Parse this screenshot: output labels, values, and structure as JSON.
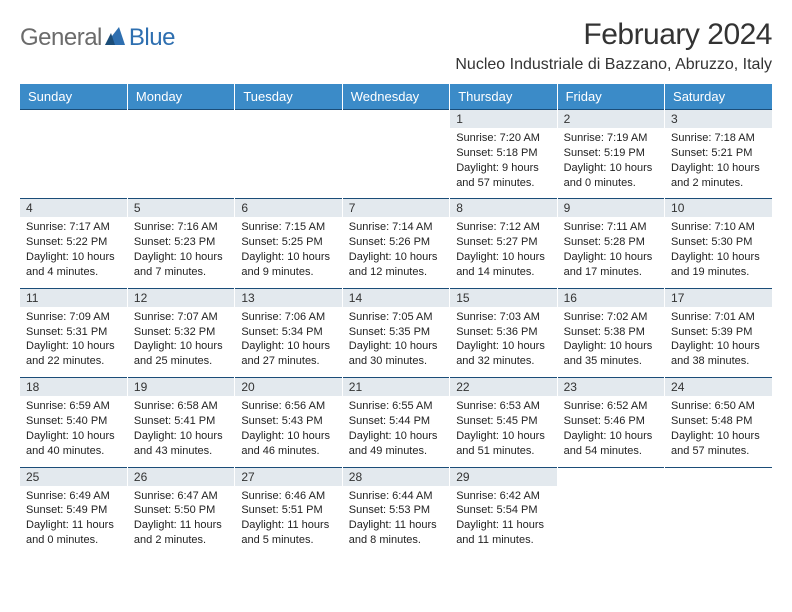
{
  "logo": {
    "text1": "General",
    "text2": "Blue"
  },
  "title": "February 2024",
  "location": "Nucleo Industriale di Bazzano, Abruzzo, Italy",
  "colors": {
    "header_bg": "#3b8bc8",
    "header_text": "#ffffff",
    "daynum_bg": "#e3e9ee",
    "rule": "#1b4d78",
    "logo_gray": "#6b6b6b",
    "logo_blue": "#2e6fb0"
  },
  "weekdays": [
    "Sunday",
    "Monday",
    "Tuesday",
    "Wednesday",
    "Thursday",
    "Friday",
    "Saturday"
  ],
  "weeks": [
    [
      null,
      null,
      null,
      null,
      {
        "n": "1",
        "sr": "7:20 AM",
        "ss": "5:18 PM",
        "dl": "9 hours and 57 minutes."
      },
      {
        "n": "2",
        "sr": "7:19 AM",
        "ss": "5:19 PM",
        "dl": "10 hours and 0 minutes."
      },
      {
        "n": "3",
        "sr": "7:18 AM",
        "ss": "5:21 PM",
        "dl": "10 hours and 2 minutes."
      }
    ],
    [
      {
        "n": "4",
        "sr": "7:17 AM",
        "ss": "5:22 PM",
        "dl": "10 hours and 4 minutes."
      },
      {
        "n": "5",
        "sr": "7:16 AM",
        "ss": "5:23 PM",
        "dl": "10 hours and 7 minutes."
      },
      {
        "n": "6",
        "sr": "7:15 AM",
        "ss": "5:25 PM",
        "dl": "10 hours and 9 minutes."
      },
      {
        "n": "7",
        "sr": "7:14 AM",
        "ss": "5:26 PM",
        "dl": "10 hours and 12 minutes."
      },
      {
        "n": "8",
        "sr": "7:12 AM",
        "ss": "5:27 PM",
        "dl": "10 hours and 14 minutes."
      },
      {
        "n": "9",
        "sr": "7:11 AM",
        "ss": "5:28 PM",
        "dl": "10 hours and 17 minutes."
      },
      {
        "n": "10",
        "sr": "7:10 AM",
        "ss": "5:30 PM",
        "dl": "10 hours and 19 minutes."
      }
    ],
    [
      {
        "n": "11",
        "sr": "7:09 AM",
        "ss": "5:31 PM",
        "dl": "10 hours and 22 minutes."
      },
      {
        "n": "12",
        "sr": "7:07 AM",
        "ss": "5:32 PM",
        "dl": "10 hours and 25 minutes."
      },
      {
        "n": "13",
        "sr": "7:06 AM",
        "ss": "5:34 PM",
        "dl": "10 hours and 27 minutes."
      },
      {
        "n": "14",
        "sr": "7:05 AM",
        "ss": "5:35 PM",
        "dl": "10 hours and 30 minutes."
      },
      {
        "n": "15",
        "sr": "7:03 AM",
        "ss": "5:36 PM",
        "dl": "10 hours and 32 minutes."
      },
      {
        "n": "16",
        "sr": "7:02 AM",
        "ss": "5:38 PM",
        "dl": "10 hours and 35 minutes."
      },
      {
        "n": "17",
        "sr": "7:01 AM",
        "ss": "5:39 PM",
        "dl": "10 hours and 38 minutes."
      }
    ],
    [
      {
        "n": "18",
        "sr": "6:59 AM",
        "ss": "5:40 PM",
        "dl": "10 hours and 40 minutes."
      },
      {
        "n": "19",
        "sr": "6:58 AM",
        "ss": "5:41 PM",
        "dl": "10 hours and 43 minutes."
      },
      {
        "n": "20",
        "sr": "6:56 AM",
        "ss": "5:43 PM",
        "dl": "10 hours and 46 minutes."
      },
      {
        "n": "21",
        "sr": "6:55 AM",
        "ss": "5:44 PM",
        "dl": "10 hours and 49 minutes."
      },
      {
        "n": "22",
        "sr": "6:53 AM",
        "ss": "5:45 PM",
        "dl": "10 hours and 51 minutes."
      },
      {
        "n": "23",
        "sr": "6:52 AM",
        "ss": "5:46 PM",
        "dl": "10 hours and 54 minutes."
      },
      {
        "n": "24",
        "sr": "6:50 AM",
        "ss": "5:48 PM",
        "dl": "10 hours and 57 minutes."
      }
    ],
    [
      {
        "n": "25",
        "sr": "6:49 AM",
        "ss": "5:49 PM",
        "dl": "11 hours and 0 minutes."
      },
      {
        "n": "26",
        "sr": "6:47 AM",
        "ss": "5:50 PM",
        "dl": "11 hours and 2 minutes."
      },
      {
        "n": "27",
        "sr": "6:46 AM",
        "ss": "5:51 PM",
        "dl": "11 hours and 5 minutes."
      },
      {
        "n": "28",
        "sr": "6:44 AM",
        "ss": "5:53 PM",
        "dl": "11 hours and 8 minutes."
      },
      {
        "n": "29",
        "sr": "6:42 AM",
        "ss": "5:54 PM",
        "dl": "11 hours and 11 minutes."
      },
      null,
      null
    ]
  ],
  "labels": {
    "sunrise": "Sunrise:",
    "sunset": "Sunset:",
    "daylight": "Daylight:"
  }
}
